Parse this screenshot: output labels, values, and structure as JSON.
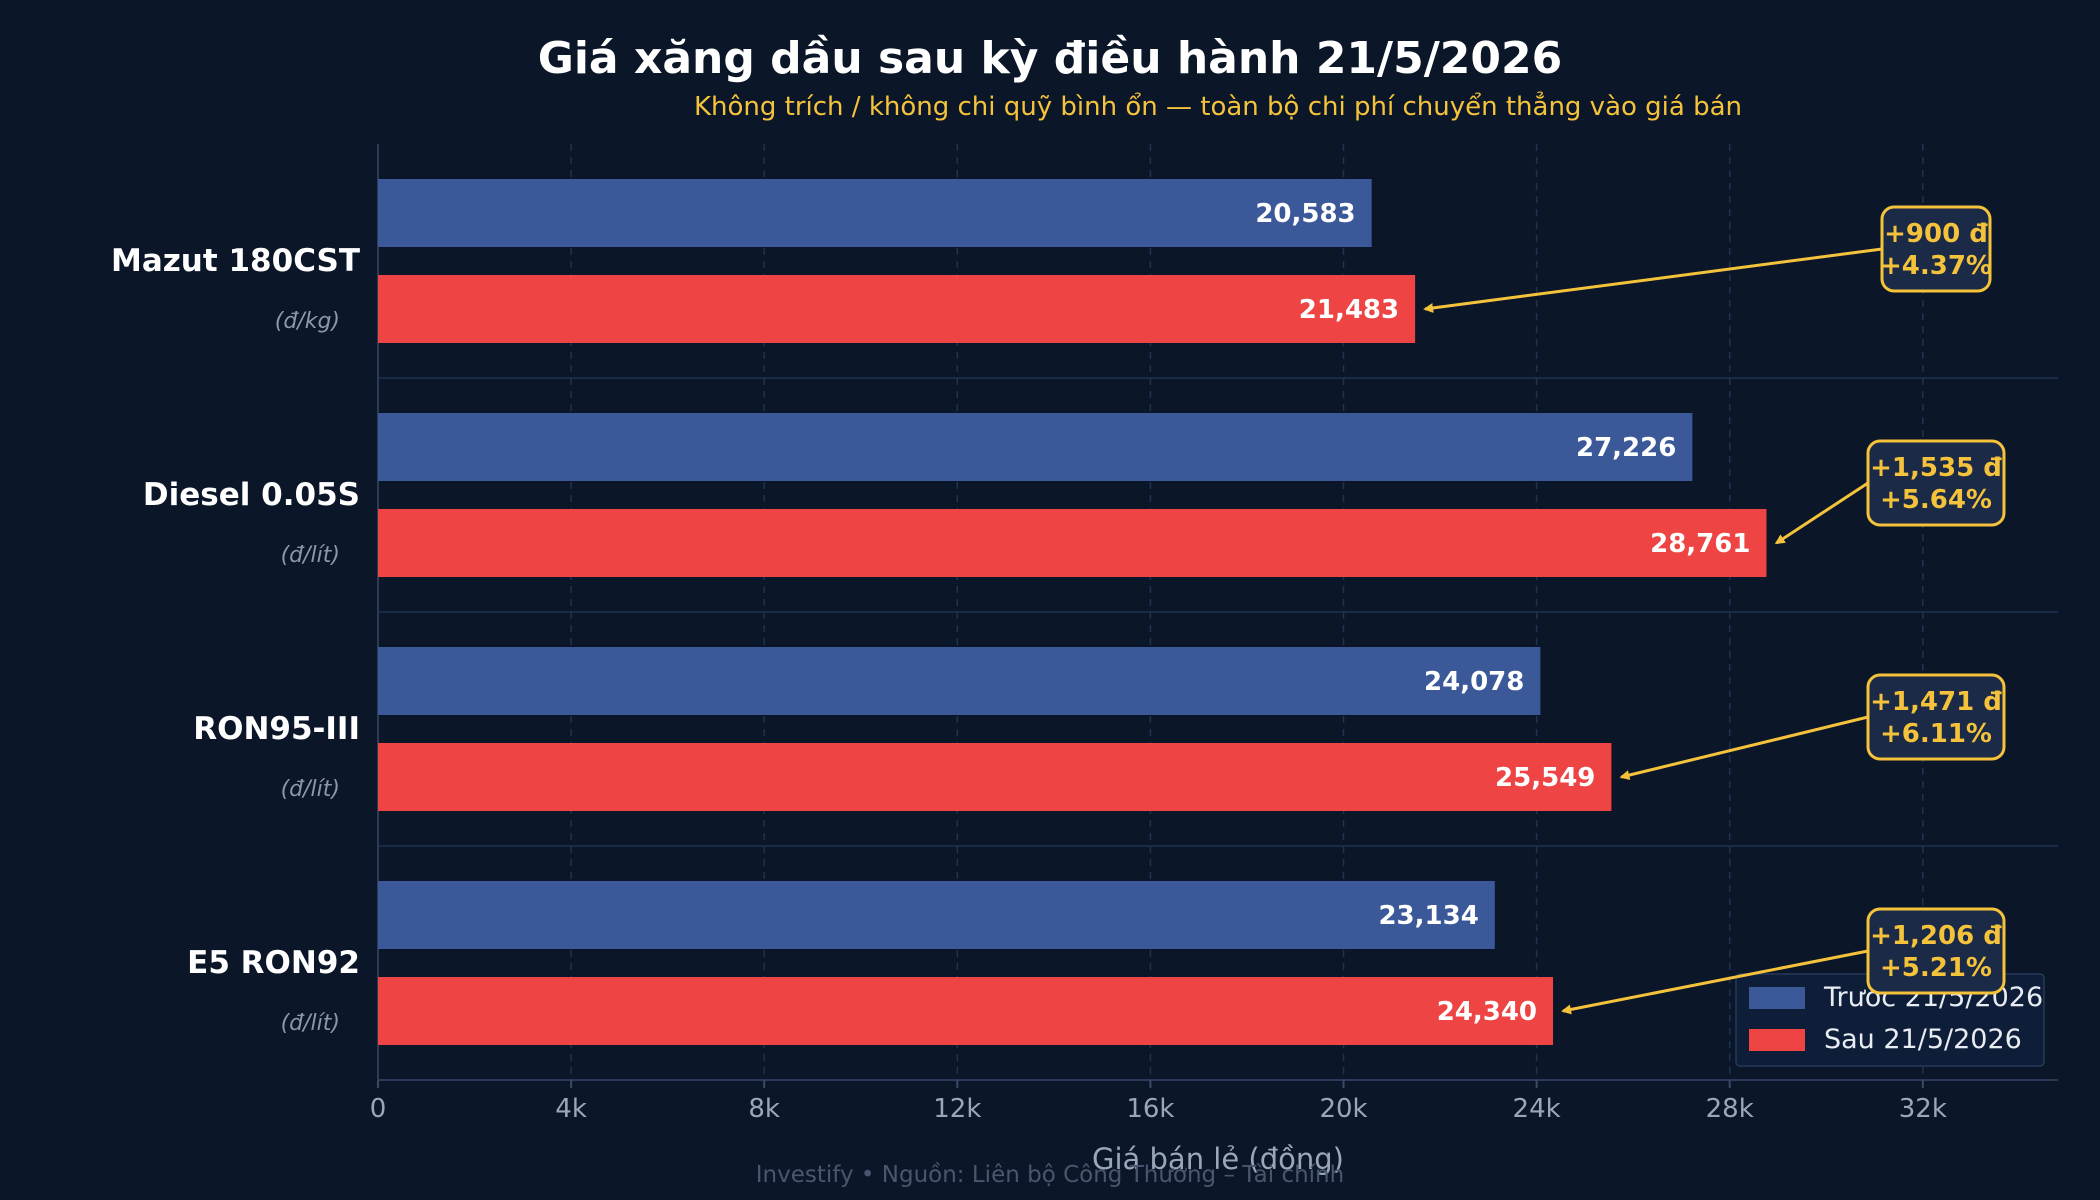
{
  "chart_data": {
    "type": "bar",
    "orientation": "horizontal",
    "title": "Giá xăng dầu sau kỳ điều hành 21/5/2026",
    "subtitle": "Không trích / không chi quỹ bình ổn — toàn bộ chi phí chuyển thẳng vào giá bán",
    "xlabel": "Giá bán lẻ (đồng)",
    "xlim": [
      0,
      34800
    ],
    "xticks": [
      0,
      4000,
      8000,
      12000,
      16000,
      20000,
      24000,
      28000,
      32000
    ],
    "xtick_labels": [
      "0",
      "4k",
      "8k",
      "12k",
      "16k",
      "20k",
      "24k",
      "28k",
      "32k"
    ],
    "grid": "vertical-dashed",
    "legend_position": "bottom-right",
    "categories": [
      "Mazut 180CST",
      "Diesel 0.05S",
      "RON95-III",
      "E5 RON92"
    ],
    "units": [
      "(đ/kg)",
      "(đ/lít)",
      "(đ/lít)",
      "(đ/lít)"
    ],
    "series": [
      {
        "name": "Trước 21/5/2026",
        "color": "#3b5998",
        "values": [
          20583,
          27226,
          24078,
          23134
        ],
        "labels": [
          "20,583",
          "27,226",
          "24,078",
          "23,134"
        ]
      },
      {
        "name": "Sau 21/5/2026",
        "color": "#ef4444",
        "values": [
          21483,
          28761,
          25549,
          24340
        ],
        "labels": [
          "21,483",
          "28,761",
          "25,549",
          "24,340"
        ]
      }
    ],
    "annotations": [
      {
        "line1": "+900 đ",
        "line2": "+4.37%"
      },
      {
        "line1": "+1,535 đ",
        "line2": "+5.64%"
      },
      {
        "line1": "+1,471 đ",
        "line2": "+6.11%"
      },
      {
        "line1": "+1,206 đ",
        "line2": "+5.21%"
      }
    ],
    "annotation_color": "#f5c33b",
    "footer": "Investify  •  Nguồn: Liên bộ Công Thương – Tài chính"
  }
}
